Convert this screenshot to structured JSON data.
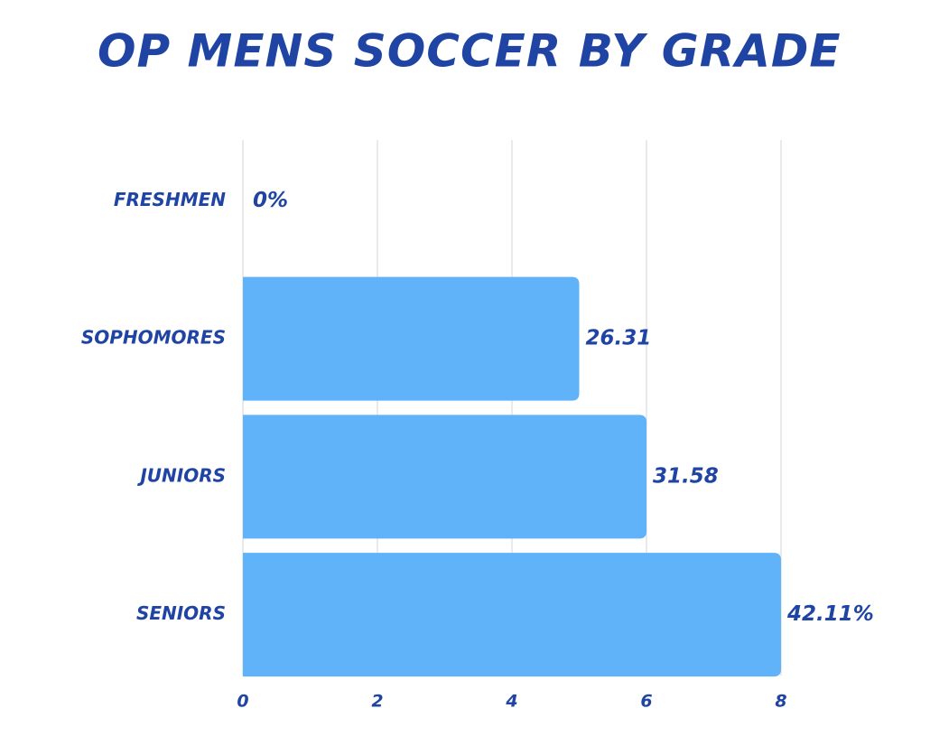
{
  "chart_data": {
    "type": "bar",
    "orientation": "horizontal",
    "title": "OP MENS SOCCER BY GRADE",
    "categories": [
      "FRESHMEN",
      "SOPHOMORES",
      "JUNIORS",
      "SENIORS"
    ],
    "values": [
      0,
      5,
      6,
      8
    ],
    "annotations": [
      "0%",
      "26.31",
      "31.58",
      "42.11%"
    ],
    "color": "#60b2f9",
    "xlim": [
      0,
      8
    ],
    "xticks": [
      0,
      2,
      4,
      6,
      8
    ],
    "grid": true
  }
}
